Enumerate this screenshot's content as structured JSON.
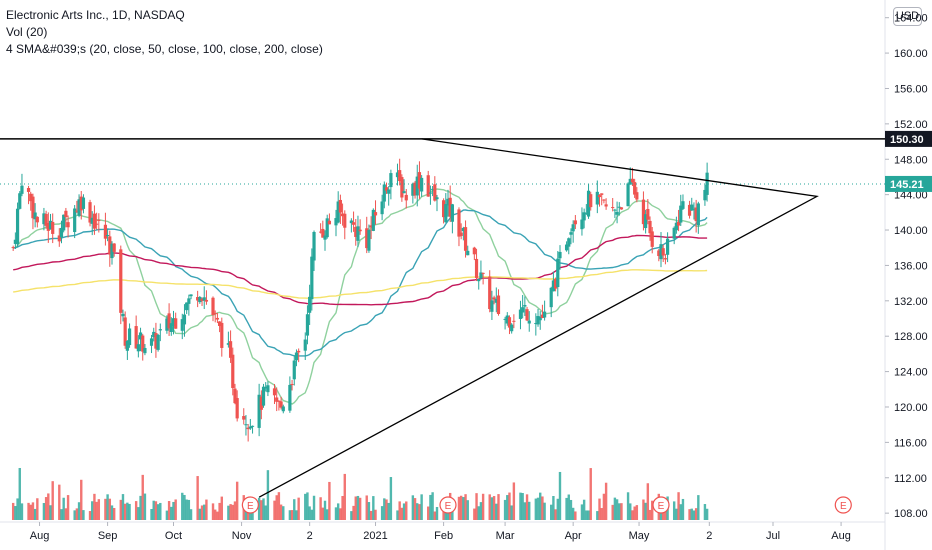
{
  "header": {
    "symbol_line": "Electronic Arts Inc., 1D, NASDAQ",
    "vol_line": "Vol (20)",
    "sma_line": "4 SMA&#039;s (20, close, 50, close, 100, close, 200, close)",
    "currency": "USD"
  },
  "colors": {
    "up": "#26a69a",
    "down": "#ef5350",
    "sma20": "#8fd19e",
    "sma50": "#3aa3b5",
    "sma100": "#c2185b",
    "sma200": "#f5e26a",
    "resistance_line": "#000000",
    "triangle": "#000000",
    "last_price_bg": "#26a69a",
    "level_bg": "#131722"
  },
  "chart_data": {
    "type": "candlestick",
    "y_range": [
      107,
      166
    ],
    "y_ticks": [
      "108.00",
      "112.00",
      "116.00",
      "120.00",
      "124.00",
      "128.00",
      "132.00",
      "136.00",
      "140.00",
      "144.00",
      "148.00",
      "152.00",
      "156.00",
      "160.00",
      "164.00"
    ],
    "x_labels": [
      "Aug",
      "Sep",
      "Oct",
      "Nov",
      "2",
      "2021",
      "Feb",
      "Mar",
      "Apr",
      "May",
      "2",
      "Jul",
      "Aug"
    ],
    "horizontal_level": {
      "value": 150.3,
      "label": "150.30"
    },
    "last_price": {
      "value": 145.21,
      "label": "145.21"
    },
    "triangle": {
      "upper_start": 150.3,
      "apex": 143.8,
      "lower_start": 109.8
    },
    "earnings_markers": [
      "E",
      "E",
      "E",
      "E"
    ],
    "sma_series": [
      {
        "name": "SMA 20",
        "period": 20
      },
      {
        "name": "SMA 50",
        "period": 50
      },
      {
        "name": "SMA 100",
        "period": 100
      },
      {
        "name": "SMA 200",
        "period": 200
      }
    ],
    "price_path_anchors": [
      {
        "date": "2020-07-20",
        "close": 138.0
      },
      {
        "date": "2020-07-24",
        "close": 146.0
      },
      {
        "date": "2020-07-31",
        "close": 141.0
      },
      {
        "date": "2020-08-10",
        "close": 140.0
      },
      {
        "date": "2020-08-20",
        "close": 143.5
      },
      {
        "date": "2020-09-03",
        "close": 138.0
      },
      {
        "date": "2020-09-09",
        "close": 128.0
      },
      {
        "date": "2020-09-21",
        "close": 127.0
      },
      {
        "date": "2020-10-05",
        "close": 131.0
      },
      {
        "date": "2020-10-13",
        "close": 133.5
      },
      {
        "date": "2020-10-19",
        "close": 130.5
      },
      {
        "date": "2020-10-26",
        "close": 126.0
      },
      {
        "date": "2020-10-30",
        "close": 120.0
      },
      {
        "date": "2020-11-05",
        "close": 118.5
      },
      {
        "date": "2020-11-12",
        "close": 121.5
      },
      {
        "date": "2020-11-19",
        "close": 120.0
      },
      {
        "date": "2020-11-30",
        "close": 128.0
      },
      {
        "date": "2020-12-04",
        "close": 139.0
      },
      {
        "date": "2020-12-15",
        "close": 142.0
      },
      {
        "date": "2020-12-28",
        "close": 139.0
      },
      {
        "date": "2021-01-08",
        "close": 146.5
      },
      {
        "date": "2021-01-15",
        "close": 144.0
      },
      {
        "date": "2021-01-22",
        "close": 146.0
      },
      {
        "date": "2021-01-29",
        "close": 143.0
      },
      {
        "date": "2021-02-05",
        "close": 142.0
      },
      {
        "date": "2021-02-12",
        "close": 138.0
      },
      {
        "date": "2021-02-22",
        "close": 132.0
      },
      {
        "date": "2021-03-01",
        "close": 130.0
      },
      {
        "date": "2021-03-10",
        "close": 131.0
      },
      {
        "date": "2021-03-19",
        "close": 130.0
      },
      {
        "date": "2021-03-31",
        "close": 141.0
      },
      {
        "date": "2021-04-09",
        "close": 143.5
      },
      {
        "date": "2021-04-19",
        "close": 142.0
      },
      {
        "date": "2021-04-28",
        "close": 145.0
      },
      {
        "date": "2021-05-07",
        "close": 139.0
      },
      {
        "date": "2021-05-13",
        "close": 137.0
      },
      {
        "date": "2021-05-21",
        "close": 143.0
      },
      {
        "date": "2021-05-27",
        "close": 142.0
      },
      {
        "date": "2021-06-01",
        "close": 145.2
      }
    ]
  }
}
